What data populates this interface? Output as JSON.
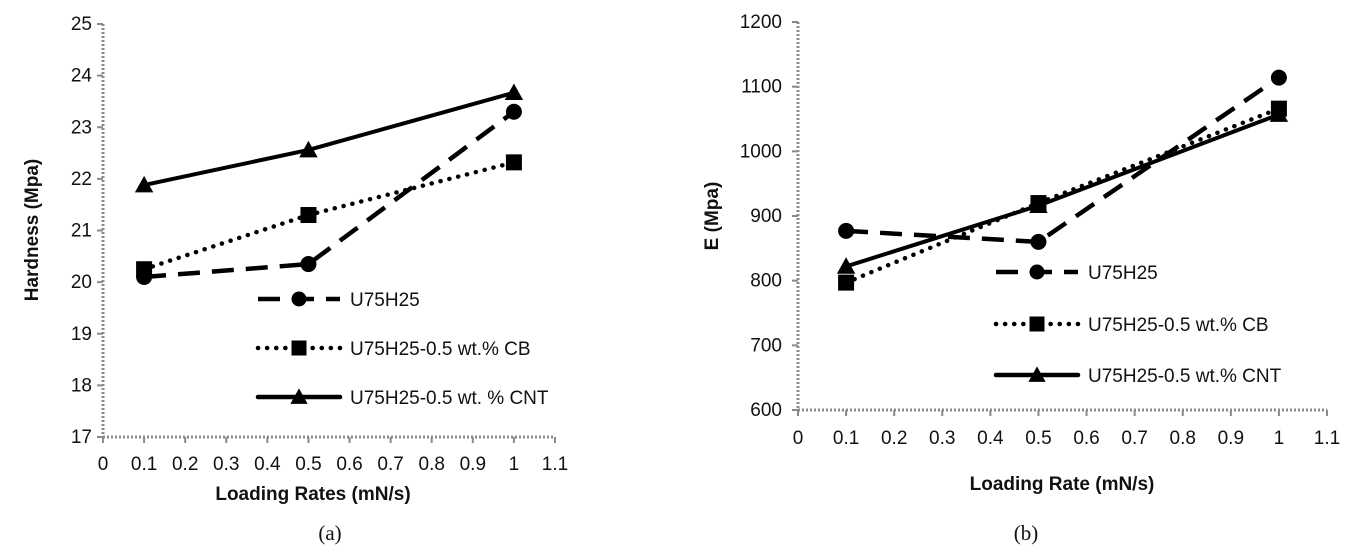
{
  "chart_data": [
    {
      "type": "line",
      "caption": "(a)",
      "xlabel": "Loading Rates (mN/s)",
      "ylabel": "Hardness (Mpa)",
      "xlim": [
        0,
        1.1
      ],
      "ylim": [
        17,
        25
      ],
      "xticks": [
        "0",
        "0.1",
        "0.2",
        "0.3",
        "0.4",
        "0.5",
        "0.6",
        "0.7",
        "0.8",
        "0.9",
        "1",
        "1.1"
      ],
      "yticks": [
        "17",
        "18",
        "19",
        "20",
        "21",
        "22",
        "23",
        "24",
        "25"
      ],
      "grid": false,
      "legend_position": "bottom-right",
      "x": [
        0.1,
        0.5,
        1
      ],
      "series": [
        {
          "name": "U75H25",
          "values": [
            20.1,
            20.35,
            23.3
          ],
          "line": "dashed",
          "marker": "circle"
        },
        {
          "name": "U75H25-0.5 wt.% CB",
          "values": [
            20.25,
            21.3,
            22.32
          ],
          "line": "dotted",
          "marker": "square"
        },
        {
          "name": "U75H25-0.5 wt. % CNT",
          "values": [
            21.88,
            22.56,
            23.67
          ],
          "line": "solid",
          "marker": "triangle"
        }
      ]
    },
    {
      "type": "line",
      "caption": "(b)",
      "xlabel": "Loading Rate (mN/s)",
      "ylabel": "E (Mpa)",
      "xlim": [
        0,
        1.1
      ],
      "ylim": [
        600,
        1200
      ],
      "xticks": [
        "0",
        "0.1",
        "0.2",
        "0.3",
        "0.4",
        "0.5",
        "0.6",
        "0.7",
        "0.8",
        "0.9",
        "1",
        "1.1"
      ],
      "yticks": [
        "600",
        "700",
        "800",
        "900",
        "1000",
        "1100",
        "1200"
      ],
      "grid": false,
      "legend_position": "bottom-right",
      "x": [
        0.1,
        0.5,
        1
      ],
      "series": [
        {
          "name": "U75H25",
          "values": [
            877,
            860,
            1114
          ],
          "line": "dashed",
          "marker": "circle"
        },
        {
          "name": "U75H25-0.5 wt.% CB",
          "values": [
            797,
            920,
            1066
          ],
          "line": "dotted",
          "marker": "square"
        },
        {
          "name": "U75H25-0.5 wt.% CNT",
          "values": [
            822,
            916,
            1057
          ],
          "line": "solid",
          "marker": "triangle"
        }
      ]
    }
  ]
}
